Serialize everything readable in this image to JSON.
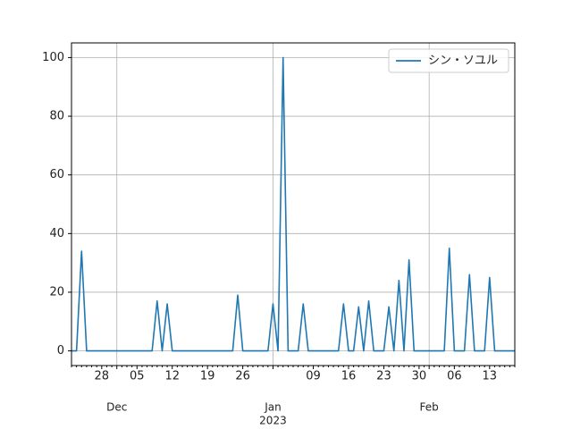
{
  "chart_data": {
    "type": "line",
    "categories": [
      null,
      null,
      null,
      null,
      null,
      null,
      "28",
      null,
      null,
      null,
      null,
      null,
      null,
      "05",
      null,
      null,
      null,
      null,
      null,
      null,
      "12",
      null,
      null,
      null,
      null,
      null,
      null,
      "19",
      null,
      null,
      null,
      null,
      null,
      null,
      "26",
      null,
      null,
      null,
      null,
      null,
      null,
      null,
      null,
      null,
      null,
      null,
      null,
      null,
      "09",
      null,
      null,
      null,
      null,
      null,
      null,
      "16",
      null,
      null,
      null,
      null,
      null,
      null,
      "23",
      null,
      null,
      null,
      null,
      null,
      null,
      "30",
      null,
      null,
      null,
      null,
      null,
      null,
      "06",
      null,
      null,
      null,
      null,
      null,
      null,
      "13",
      null,
      null,
      null,
      null,
      null
    ],
    "month_labels": [
      null,
      null,
      null,
      null,
      null,
      null,
      null,
      null,
      null,
      "Dec",
      null,
      null,
      null,
      null,
      null,
      null,
      null,
      null,
      null,
      null,
      null,
      null,
      null,
      null,
      null,
      null,
      null,
      null,
      null,
      null,
      null,
      null,
      null,
      null,
      null,
      null,
      null,
      null,
      null,
      null,
      "Jan",
      null,
      null,
      null,
      null,
      null,
      null,
      null,
      null,
      null,
      null,
      null,
      null,
      null,
      null,
      null,
      null,
      null,
      null,
      null,
      null,
      null,
      null,
      null,
      null,
      null,
      null,
      null,
      null,
      null,
      null,
      "Feb",
      null,
      null,
      null,
      null,
      null,
      null,
      null,
      null,
      null,
      null,
      null,
      null,
      null,
      null,
      null,
      null,
      null
    ],
    "year_labels": [
      null,
      null,
      null,
      null,
      null,
      null,
      null,
      null,
      null,
      null,
      null,
      null,
      null,
      null,
      null,
      null,
      null,
      null,
      null,
      null,
      null,
      null,
      null,
      null,
      null,
      null,
      null,
      null,
      null,
      null,
      null,
      null,
      null,
      null,
      null,
      null,
      null,
      null,
      null,
      null,
      "2023",
      null,
      null,
      null,
      null,
      null,
      null,
      null,
      null,
      null,
      null,
      null,
      null,
      null,
      null,
      null,
      null,
      null,
      null,
      null,
      null,
      null,
      null,
      null,
      null,
      null,
      null,
      null,
      null,
      null,
      null,
      null,
      null,
      null,
      null,
      null,
      null,
      null,
      null,
      null,
      null,
      null,
      null,
      null,
      null,
      null,
      null,
      null,
      null
    ],
    "series": [
      {
        "name": "シン・ソユル",
        "color": "#1f77b4",
        "values": [
          0,
          0,
          34,
          0,
          0,
          0,
          0,
          0,
          0,
          0,
          0,
          0,
          0,
          0,
          0,
          0,
          0,
          17,
          0,
          16,
          0,
          0,
          0,
          0,
          0,
          0,
          0,
          0,
          0,
          0,
          0,
          0,
          0,
          19,
          0,
          0,
          0,
          0,
          0,
          0,
          16,
          0,
          100,
          0,
          0,
          0,
          16,
          0,
          0,
          0,
          0,
          0,
          0,
          0,
          16,
          0,
          0,
          15,
          0,
          17,
          0,
          0,
          0,
          15,
          0,
          24,
          0,
          31,
          0,
          0,
          0,
          0,
          0,
          0,
          0,
          35,
          0,
          0,
          0,
          26,
          0,
          0,
          0,
          25,
          0,
          0,
          0,
          0,
          0
        ]
      }
    ],
    "ylim": [
      -5,
      105
    ],
    "yticks": [
      0,
      20,
      40,
      60,
      80,
      100
    ],
    "grid": true,
    "legend": "upper right"
  }
}
